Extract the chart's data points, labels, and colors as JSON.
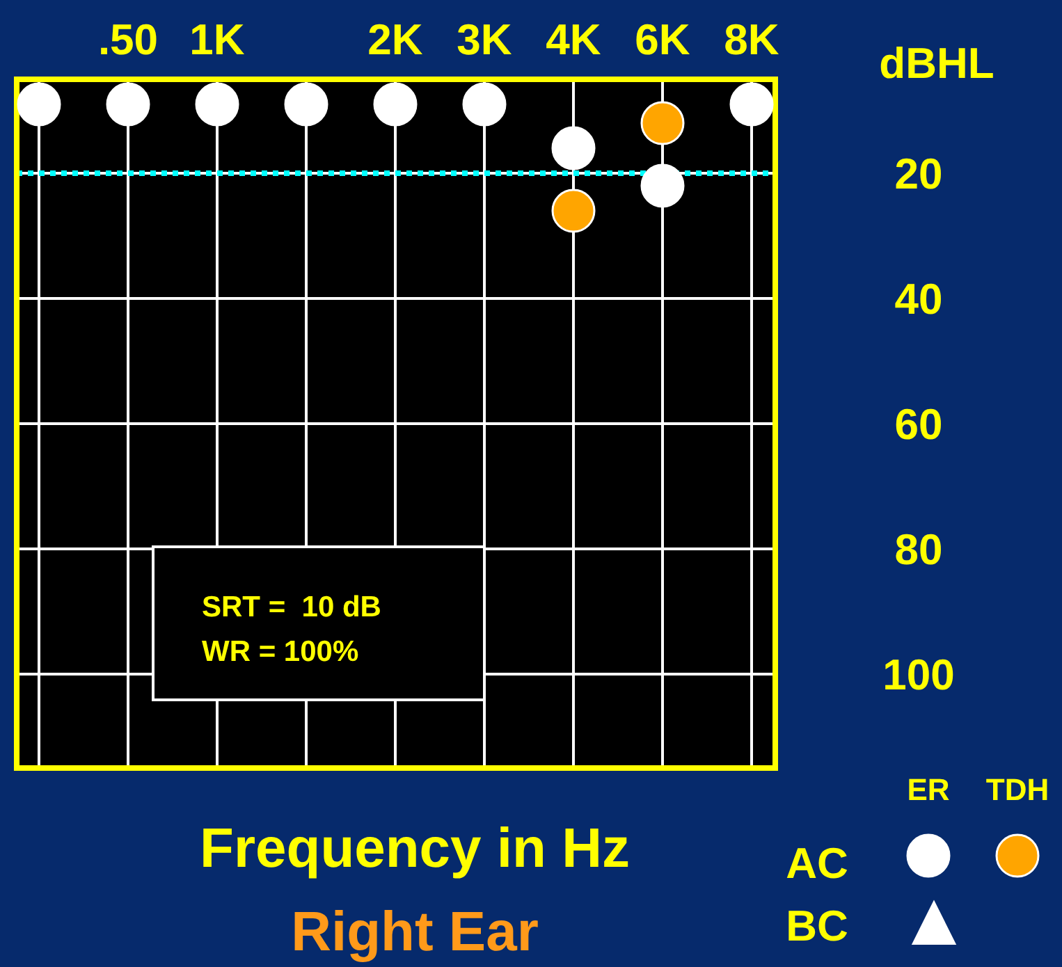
{
  "chart_data": {
    "type": "scatter",
    "subtitle": "Right Ear",
    "xlabel": "Frequency in Hz",
    "ylabel": "dBHL",
    "categories": [
      null,
      ".50",
      "1K",
      null,
      "2K",
      "3K",
      "4K",
      "6K",
      "8K"
    ],
    "ylim": [
      115,
      5
    ],
    "yticks": [
      20,
      40,
      60,
      80,
      100
    ],
    "grid": true,
    "legend": "bottom right",
    "series": [
      {
        "name": "ER",
        "color": "#ffffff",
        "marker": "circle",
        "values": [
          9,
          9,
          9,
          9,
          9,
          9,
          16,
          22,
          9
        ]
      },
      {
        "name": "TDH",
        "color": "#ffa500",
        "marker": "circle",
        "values": [
          null,
          null,
          null,
          null,
          null,
          null,
          26,
          12,
          null
        ]
      },
      {
        "name": "BC",
        "color": "#ffffff",
        "marker": "triangle",
        "values": [
          null,
          null,
          null,
          null,
          null,
          null,
          null,
          null,
          null
        ]
      }
    ],
    "ref_lines": [
      {
        "axis": "y",
        "value": 20,
        "color": "#00ffff",
        "line_style": "dotted"
      }
    ],
    "annotations": [
      "SRT =  10 dB",
      "WR = 100%",
      "AC"
    ]
  }
}
